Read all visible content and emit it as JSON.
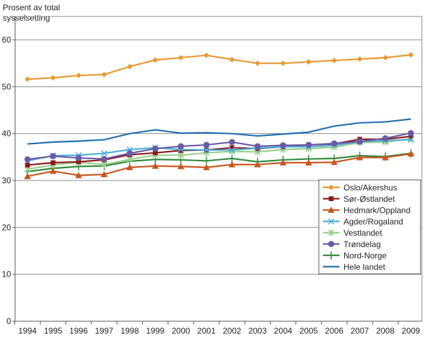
{
  "chart_data": {
    "type": "line",
    "title": "",
    "xlabel": "",
    "ylabel": "Prosent av total\nsysselsetting",
    "ylim": [
      0,
      60
    ],
    "yticks": [
      0,
      10,
      20,
      30,
      40,
      50,
      60
    ],
    "grid": "horizontal",
    "legend": "right",
    "categories": [
      "1994",
      "1995",
      "1996",
      "1997",
      "1998",
      "1999",
      "2000",
      "2001",
      "2002",
      "2003",
      "2004",
      "2005",
      "2006",
      "2007",
      "2008",
      "2009"
    ],
    "series": [
      {
        "name": "Oslo/Akershus",
        "color": "#e8982f",
        "marker": "diamond",
        "values": [
          51.6,
          51.9,
          52.4,
          52.6,
          54.3,
          55.7,
          56.2,
          56.7,
          55.8,
          55.0,
          55.0,
          55.3,
          55.6,
          55.9,
          56.2,
          56.8
        ]
      },
      {
        "name": "Sør-Østlandet",
        "color": "#8b1a1a",
        "marker": "square",
        "values": [
          33.3,
          33.8,
          34.0,
          34.4,
          35.5,
          35.9,
          36.4,
          36.5,
          37.0,
          36.8,
          37.2,
          37.6,
          37.8,
          38.8,
          38.8,
          39.4
        ]
      },
      {
        "name": "Hedmark/Oppland",
        "color": "#c8561e",
        "marker": "triangle",
        "values": [
          30.9,
          32.0,
          31.1,
          31.3,
          32.8,
          33.1,
          33.0,
          32.8,
          33.4,
          33.4,
          33.8,
          33.8,
          33.9,
          34.9,
          34.9,
          35.7
        ]
      },
      {
        "name": "Agder/Rogaland",
        "color": "#4aaed9",
        "marker": "x",
        "values": [
          34.2,
          35.3,
          35.4,
          35.8,
          36.6,
          37.0,
          36.6,
          36.5,
          36.5,
          36.9,
          37.2,
          37.2,
          37.5,
          38.3,
          38.5,
          38.7
        ]
      },
      {
        "name": "Vestlandet",
        "color": "#9ccf8c",
        "marker": "star",
        "values": [
          32.4,
          33.3,
          33.9,
          33.4,
          34.5,
          35.4,
          35.4,
          35.9,
          36.2,
          36.1,
          36.6,
          36.8,
          37.1,
          38.1,
          38.2,
          38.9
        ]
      },
      {
        "name": "Trøndelag",
        "color": "#6a5aa8",
        "marker": "circle",
        "values": [
          34.5,
          35.2,
          34.8,
          34.6,
          35.8,
          36.8,
          37.3,
          37.6,
          38.2,
          37.3,
          37.5,
          37.6,
          37.9,
          38.3,
          39.0,
          40.1
        ]
      },
      {
        "name": "Nord-Norge",
        "color": "#2e8b3e",
        "marker": "plus",
        "values": [
          31.9,
          32.6,
          33.0,
          33.1,
          34.1,
          34.5,
          34.4,
          34.2,
          34.7,
          34.0,
          34.4,
          34.6,
          34.7,
          35.3,
          35.1,
          35.8
        ]
      },
      {
        "name": "Hele landet",
        "color": "#1f6fb0",
        "marker": "none",
        "values": [
          37.8,
          38.2,
          38.4,
          38.7,
          40.0,
          40.8,
          40.1,
          40.2,
          40.0,
          39.5,
          39.9,
          40.3,
          41.6,
          42.3,
          42.5,
          43.1
        ]
      }
    ]
  }
}
